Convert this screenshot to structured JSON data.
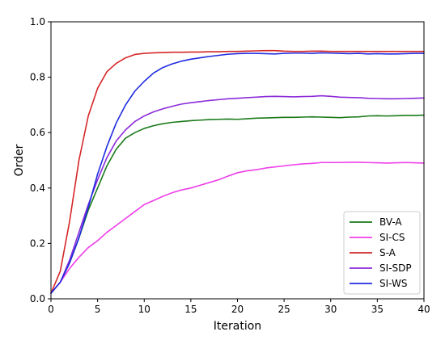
{
  "chart_data": {
    "type": "line",
    "xlabel": "Iteration",
    "ylabel": "Order",
    "xlim": [
      0,
      40
    ],
    "ylim": [
      0.0,
      1.0
    ],
    "xticks": [
      "0",
      "5",
      "10",
      "15",
      "20",
      "25",
      "30",
      "35",
      "40"
    ],
    "yticks": [
      "0.0",
      "0.2",
      "0.4",
      "0.6",
      "0.8",
      "1.0"
    ],
    "grid": false,
    "legend_position": "bottom-right",
    "x": [
      0,
      1,
      2,
      3,
      4,
      5,
      6,
      7,
      8,
      9,
      10,
      11,
      12,
      13,
      14,
      15,
      16,
      17,
      18,
      19,
      20,
      21,
      22,
      23,
      24,
      25,
      26,
      27,
      28,
      29,
      30,
      31,
      32,
      33,
      34,
      35,
      36,
      37,
      38,
      39,
      40
    ],
    "series": [
      {
        "name": "BV-A",
        "color": "#1a7a1a",
        "values": [
          0.02,
          0.06,
          0.13,
          0.22,
          0.32,
          0.4,
          0.48,
          0.54,
          0.58,
          0.6,
          0.615,
          0.625,
          0.632,
          0.637,
          0.64,
          0.643,
          0.645,
          0.647,
          0.648,
          0.649,
          0.648,
          0.65,
          0.652,
          0.653,
          0.654,
          0.655,
          0.655,
          0.656,
          0.657,
          0.656,
          0.655,
          0.654,
          0.656,
          0.657,
          0.66,
          0.661,
          0.66,
          0.661,
          0.662,
          0.662,
          0.663
        ]
      },
      {
        "name": "SI-CS",
        "color": "#ee3ee9",
        "values": [
          0.02,
          0.06,
          0.11,
          0.15,
          0.185,
          0.21,
          0.24,
          0.265,
          0.29,
          0.315,
          0.34,
          0.355,
          0.37,
          0.383,
          0.393,
          0.4,
          0.41,
          0.42,
          0.43,
          0.443,
          0.455,
          0.462,
          0.466,
          0.472,
          0.476,
          0.48,
          0.484,
          0.487,
          0.489,
          0.492,
          0.492,
          0.492,
          0.493,
          0.493,
          0.492,
          0.491,
          0.49,
          0.491,
          0.492,
          0.491,
          0.49
        ]
      },
      {
        "name": "S-A",
        "color": "#d62728",
        "values": [
          0.02,
          0.1,
          0.28,
          0.5,
          0.66,
          0.76,
          0.82,
          0.85,
          0.87,
          0.882,
          0.886,
          0.888,
          0.889,
          0.89,
          0.89,
          0.891,
          0.891,
          0.892,
          0.892,
          0.893,
          0.893,
          0.894,
          0.895,
          0.896,
          0.896,
          0.894,
          0.893,
          0.893,
          0.894,
          0.894,
          0.893,
          0.893,
          0.893,
          0.893,
          0.893,
          0.893,
          0.893,
          0.893,
          0.893,
          0.893,
          0.893
        ]
      },
      {
        "name": "SI-SDP",
        "color": "#8b2bd9",
        "values": [
          0.02,
          0.06,
          0.14,
          0.24,
          0.34,
          0.43,
          0.51,
          0.57,
          0.61,
          0.64,
          0.66,
          0.675,
          0.686,
          0.695,
          0.703,
          0.708,
          0.712,
          0.716,
          0.719,
          0.722,
          0.724,
          0.726,
          0.728,
          0.73,
          0.731,
          0.73,
          0.729,
          0.73,
          0.731,
          0.733,
          0.731,
          0.728,
          0.727,
          0.726,
          0.724,
          0.723,
          0.722,
          0.722,
          0.723,
          0.724,
          0.725
        ]
      },
      {
        "name": "SI-WS",
        "color": "#1f2be0",
        "values": [
          0.02,
          0.06,
          0.13,
          0.22,
          0.33,
          0.45,
          0.55,
          0.635,
          0.7,
          0.75,
          0.785,
          0.815,
          0.835,
          0.848,
          0.858,
          0.865,
          0.87,
          0.875,
          0.879,
          0.883,
          0.885,
          0.886,
          0.886,
          0.885,
          0.884,
          0.886,
          0.887,
          0.887,
          0.886,
          0.888,
          0.887,
          0.886,
          0.885,
          0.886,
          0.884,
          0.885,
          0.884,
          0.884,
          0.885,
          0.886,
          0.886
        ]
      }
    ]
  }
}
